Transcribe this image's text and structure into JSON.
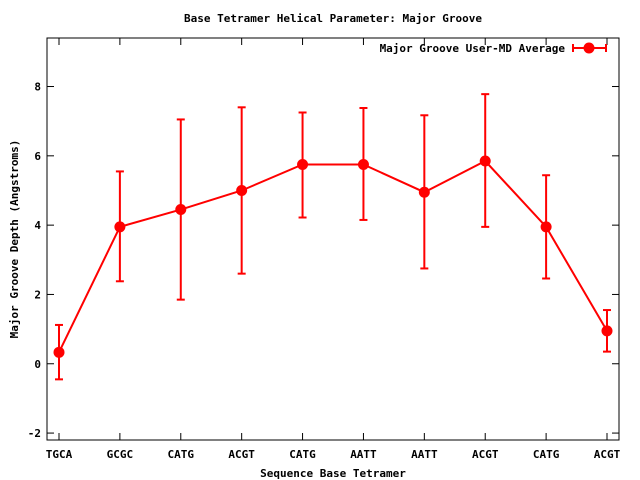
{
  "chart_data": {
    "type": "line",
    "title": "Base Tetramer Helical Parameter: Major Groove",
    "xlabel": "Sequence Base Tetramer",
    "ylabel": "Major Groove Depth (Angstroms)",
    "categories": [
      "TGCA",
      "GCGC",
      "CATG",
      "ACGT",
      "CATG",
      "AATT",
      "AATT",
      "ACGT",
      "CATG",
      "ACGT"
    ],
    "ylim": [
      -2.2,
      9.4
    ],
    "yticks": [
      -2,
      0,
      2,
      4,
      6,
      8
    ],
    "grid": false,
    "legend": "top-right",
    "series": [
      {
        "name": "Major Groove User-MD Average",
        "color": "#ff0000",
        "values": [
          0.33,
          3.95,
          4.45,
          5.0,
          5.75,
          5.75,
          4.95,
          5.85,
          3.95,
          0.95
        ],
        "err_low": [
          -0.45,
          2.38,
          1.85,
          2.6,
          4.22,
          4.15,
          2.75,
          3.95,
          2.46,
          0.35
        ],
        "err_high": [
          1.12,
          5.55,
          7.05,
          7.4,
          7.25,
          7.38,
          7.17,
          7.78,
          5.44,
          1.55
        ]
      }
    ]
  }
}
